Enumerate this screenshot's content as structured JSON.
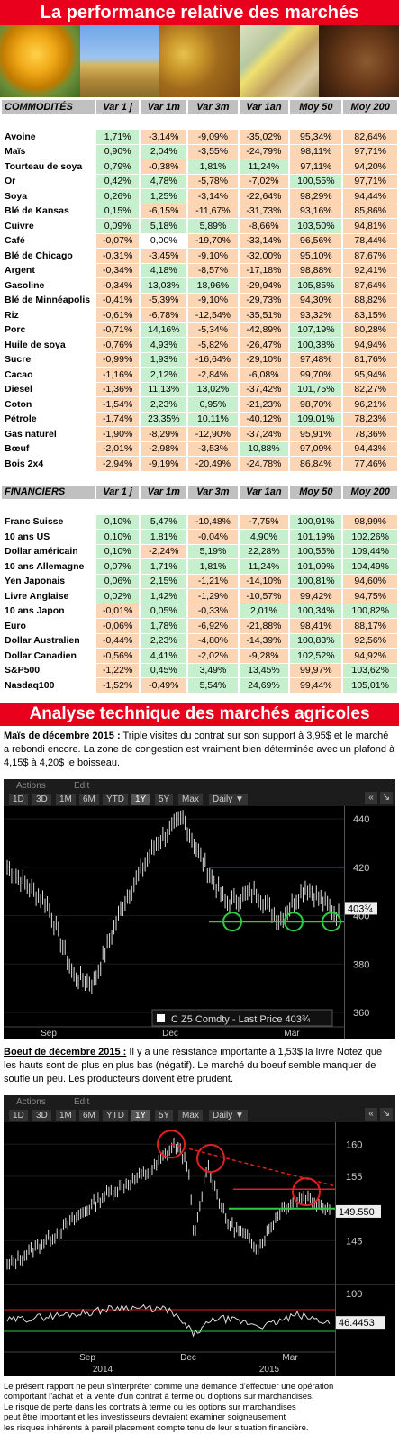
{
  "title": "La performance relative des marchés",
  "commodities": {
    "headers": [
      "COMMODITÉS",
      "Var 1 j",
      "Var 1m",
      "Var 3m",
      "Var 1an",
      "Moy 50",
      "Moy 200"
    ],
    "rows": [
      [
        "Avoine",
        "1,71%",
        "-3,14%",
        "-9,09%",
        "-35,02%",
        "95,34%",
        "82,64%"
      ],
      [
        "Maïs",
        "0,90%",
        "2,04%",
        "-3,55%",
        "-24,79%",
        "98,11%",
        "97,71%"
      ],
      [
        "Tourteau de soya",
        "0,79%",
        "-0,38%",
        "1,81%",
        "11,24%",
        "97,11%",
        "94,20%"
      ],
      [
        "Or",
        "0,42%",
        "4,78%",
        "-5,78%",
        "-7,02%",
        "100,55%",
        "97,71%"
      ],
      [
        "Soya",
        "0,26%",
        "1,25%",
        "-3,14%",
        "-22,64%",
        "98,29%",
        "94,44%"
      ],
      [
        "Blé de Kansas",
        "0,15%",
        "-6,15%",
        "-11,67%",
        "-31,73%",
        "93,16%",
        "85,86%"
      ],
      [
        "Cuivre",
        "0,09%",
        "5,18%",
        "5,89%",
        "-8,66%",
        "103,50%",
        "94,81%"
      ],
      [
        "Café",
        "-0,07%",
        "0,00%",
        "-19,70%",
        "-33,14%",
        "96,56%",
        "78,44%"
      ],
      [
        "Blé de Chicago",
        "-0,31%",
        "-3,45%",
        "-9,10%",
        "-32,00%",
        "95,10%",
        "87,67%"
      ],
      [
        "Argent",
        "-0,34%",
        "4,18%",
        "-8,57%",
        "-17,18%",
        "98,88%",
        "92,41%"
      ],
      [
        "Gasoline",
        "-0,34%",
        "13,03%",
        "18,96%",
        "-29,94%",
        "105,85%",
        "87,64%"
      ],
      [
        "Blé de Minnéapolis",
        "-0,41%",
        "-5,39%",
        "-9,10%",
        "-29,73%",
        "94,30%",
        "88,82%"
      ],
      [
        "Riz",
        "-0,61%",
        "-6,78%",
        "-12,54%",
        "-35,51%",
        "93,32%",
        "83,15%"
      ],
      [
        "Porc",
        "-0,71%",
        "14,16%",
        "-5,34%",
        "-42,89%",
        "107,19%",
        "80,28%"
      ],
      [
        "Huile de soya",
        "-0,76%",
        "4,93%",
        "-5,82%",
        "-26,47%",
        "100,38%",
        "94,94%"
      ],
      [
        "Sucre",
        "-0,99%",
        "1,93%",
        "-16,64%",
        "-29,10%",
        "97,48%",
        "81,76%"
      ],
      [
        "Cacao",
        "-1,16%",
        "2,12%",
        "-2,84%",
        "-6,08%",
        "99,70%",
        "95,94%"
      ],
      [
        "Diesel",
        "-1,36%",
        "11,13%",
        "13,02%",
        "-37,42%",
        "101,75%",
        "82,27%"
      ],
      [
        "Coton",
        "-1,54%",
        "2,23%",
        "0,95%",
        "-21,23%",
        "98,70%",
        "96,21%"
      ],
      [
        "Pétrole",
        "-1,74%",
        "23,35%",
        "10,11%",
        "-40,12%",
        "109,01%",
        "78,23%"
      ],
      [
        "Gas naturel",
        "-1,90%",
        "-8,29%",
        "-12,90%",
        "-37,24%",
        "95,91%",
        "78,36%"
      ],
      [
        "Bœuf",
        "-2,01%",
        "-2,98%",
        "-3,53%",
        "10,88%",
        "97,09%",
        "94,43%"
      ],
      [
        "Bois 2x4",
        "-2,94%",
        "-9,19%",
        "-20,49%",
        "-24,78%",
        "86,84%",
        "77,46%"
      ]
    ]
  },
  "financials": {
    "headers": [
      "FINANCIERS",
      "Var 1 j",
      "Var 1m",
      "Var 3m",
      "Var 1an",
      "Moy 50",
      "Moy 200"
    ],
    "rows": [
      [
        "Franc Suisse",
        "0,10%",
        "5,47%",
        "-10,48%",
        "-7,75%",
        "100,91%",
        "98,99%"
      ],
      [
        "10 ans US",
        "0,10%",
        "1,81%",
        "-0,04%",
        "4,90%",
        "101,19%",
        "102,26%"
      ],
      [
        "Dollar américain",
        "0,10%",
        "-2,24%",
        "5,19%",
        "22,28%",
        "100,55%",
        "109,44%"
      ],
      [
        "10 ans Allemagne",
        "0,07%",
        "1,71%",
        "1,81%",
        "11,24%",
        "101,09%",
        "104,49%"
      ],
      [
        "Yen Japonais",
        "0,06%",
        "2,15%",
        "-1,21%",
        "-14,10%",
        "100,81%",
        "94,60%"
      ],
      [
        "Livre Anglaise",
        "0,02%",
        "1,42%",
        "-1,29%",
        "-10,57%",
        "99,42%",
        "94,75%"
      ],
      [
        "10 ans Japon",
        "-0,01%",
        "0,05%",
        "-0,33%",
        "2,01%",
        "100,34%",
        "100,82%"
      ],
      [
        "Euro",
        "-0,06%",
        "1,78%",
        "-6,92%",
        "-21,88%",
        "98,41%",
        "88,17%"
      ],
      [
        "Dollar Australien",
        "-0,44%",
        "2,23%",
        "-4,80%",
        "-14,39%",
        "100,83%",
        "92,56%"
      ],
      [
        "Dollar Canadien",
        "-0,56%",
        "4,41%",
        "-2,02%",
        "-9,28%",
        "102,52%",
        "94,92%"
      ],
      [
        "S&P500",
        "-1,22%",
        "0,45%",
        "3,49%",
        "13,45%",
        "99,97%",
        "103,62%"
      ],
      [
        "Nasdaq100",
        "-1,52%",
        "-0,49%",
        "5,54%",
        "24,69%",
        "99,44%",
        "105,01%"
      ]
    ]
  },
  "analysis_title": "Analyse technique des marchés agricoles",
  "corn": {
    "lead": "Maïs de décembre 2015 :",
    "text": " Triple visites du contrat sur son support à 3,95$ et le marché a rebondi encore. La zone de congestion est vraiment bien déterminée avec un plafond à 4,15$ à 4,20$ le boisseau."
  },
  "beef": {
    "lead": "Boeuf de décembre 2015 :",
    "text": " Il y a une résistance importante à 1,53$ la livre Notez que les hauts sont de plus en plus bas (négatif). Le marché du boeuf semble manquer de soufle un peu. Les producteurs doivent être prudent."
  },
  "toolbar": {
    "actions": "Actions",
    "edit": "Edit",
    "ranges": [
      "1D",
      "3D",
      "1M",
      "6M",
      "YTD",
      "1Y",
      "5Y",
      "Max"
    ],
    "daily": "Daily ▼"
  },
  "chart1": {
    "y_ticks": [
      "440",
      "420",
      "400",
      "380",
      "360"
    ],
    "last": "403¾",
    "legend": "C Z5 Comdty - Last Price 403¾",
    "months": [
      "Sep",
      "Dec",
      "Mar"
    ],
    "years": [
      "2014",
      "2015"
    ]
  },
  "chart2": {
    "y_ticks": [
      "160",
      "155",
      "150",
      "145"
    ],
    "last": "149.550",
    "osc_ticks": [
      "100",
      "0"
    ],
    "osc_last": "46.4453",
    "months": [
      "Sep",
      "Dec",
      "Mar"
    ],
    "years": [
      "2014",
      "2015"
    ]
  },
  "disclaimer": [
    "Le présent rapport ne peut s'interpréter comme une demande d'effectuer une opération",
    "comportant l'achat et la vente d'un contrat à terme ou d'options sur marchandises.",
    "Le risque de perte dans les contrats à terme ou les options sur marchandises",
    "peut être important et les investisseurs devraient examiner soigneusement",
    "les risques inhérents à pareil placement compte tenu de leur situation financière."
  ]
}
